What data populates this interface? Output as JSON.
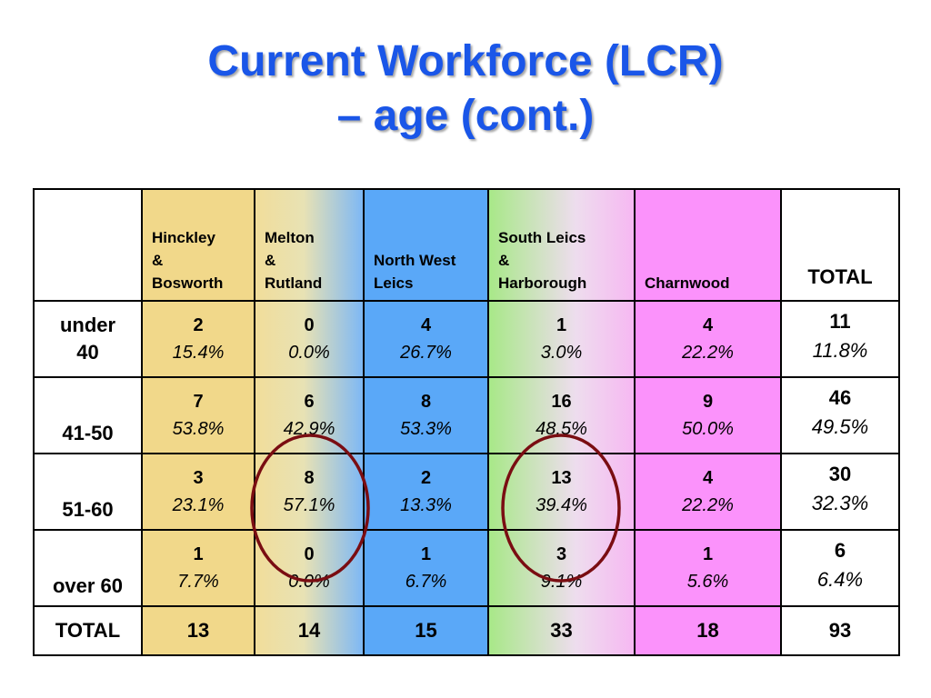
{
  "title": {
    "line1": "Current Workforce (LCR)",
    "line2": "– age (cont.)"
  },
  "table": {
    "columns": [
      {
        "line1": "Hinckley",
        "line2": "&",
        "line3": "Bosworth"
      },
      {
        "line1": "Melton",
        "line2": "&",
        "line3": "Rutland"
      },
      {
        "line1": "North West",
        "line2": "Leics",
        "line3": ""
      },
      {
        "line1": "South Leics",
        "line2": "&",
        "line3": "Harborough"
      },
      {
        "line1": "Charnwood",
        "line2": "",
        "line3": ""
      }
    ],
    "total_header": "TOTAL",
    "column_colors": [
      "#f1d88a",
      "#e8e2b4",
      "#5aa8f8",
      "#eeddee",
      "#fb92fb"
    ],
    "rows": [
      {
        "label_line1": "under",
        "label_line2": "40",
        "cells": [
          {
            "count": "2",
            "pct": "15.4%"
          },
          {
            "count": "0",
            "pct": "0.0%"
          },
          {
            "count": "4",
            "pct": "26.7%"
          },
          {
            "count": "1",
            "pct": "3.0%"
          },
          {
            "count": "4",
            "pct": "22.2%"
          }
        ],
        "total": {
          "count": "11",
          "pct": "11.8%"
        }
      },
      {
        "label_line1": "41-50",
        "label_line2": "",
        "cells": [
          {
            "count": "7",
            "pct": "53.8%"
          },
          {
            "count": "6",
            "pct": "42.9%"
          },
          {
            "count": "8",
            "pct": "53.3%"
          },
          {
            "count": "16",
            "pct": "48.5%"
          },
          {
            "count": "9",
            "pct": "50.0%"
          }
        ],
        "total": {
          "count": "46",
          "pct": "49.5%"
        }
      },
      {
        "label_line1": "51-60",
        "label_line2": "",
        "cells": [
          {
            "count": "3",
            "pct": "23.1%"
          },
          {
            "count": "8",
            "pct": "57.1%"
          },
          {
            "count": "2",
            "pct": "13.3%"
          },
          {
            "count": "13",
            "pct": "39.4%"
          },
          {
            "count": "4",
            "pct": "22.2%"
          }
        ],
        "total": {
          "count": "30",
          "pct": "32.3%"
        }
      },
      {
        "label_line1": "over 60",
        "label_line2": "",
        "cells": [
          {
            "count": "1",
            "pct": "7.7%"
          },
          {
            "count": "0",
            "pct": "0.0%"
          },
          {
            "count": "1",
            "pct": "6.7%"
          },
          {
            "count": "3",
            "pct": "9.1%"
          },
          {
            "count": "1",
            "pct": "5.6%"
          }
        ],
        "total": {
          "count": "6",
          "pct": "6.4%"
        }
      }
    ],
    "total_row": {
      "label": "TOTAL",
      "values": [
        "13",
        "14",
        "15",
        "33",
        "18"
      ],
      "grand_total": "93"
    }
  },
  "annotations": {
    "circle_color": "#7a0d12"
  }
}
